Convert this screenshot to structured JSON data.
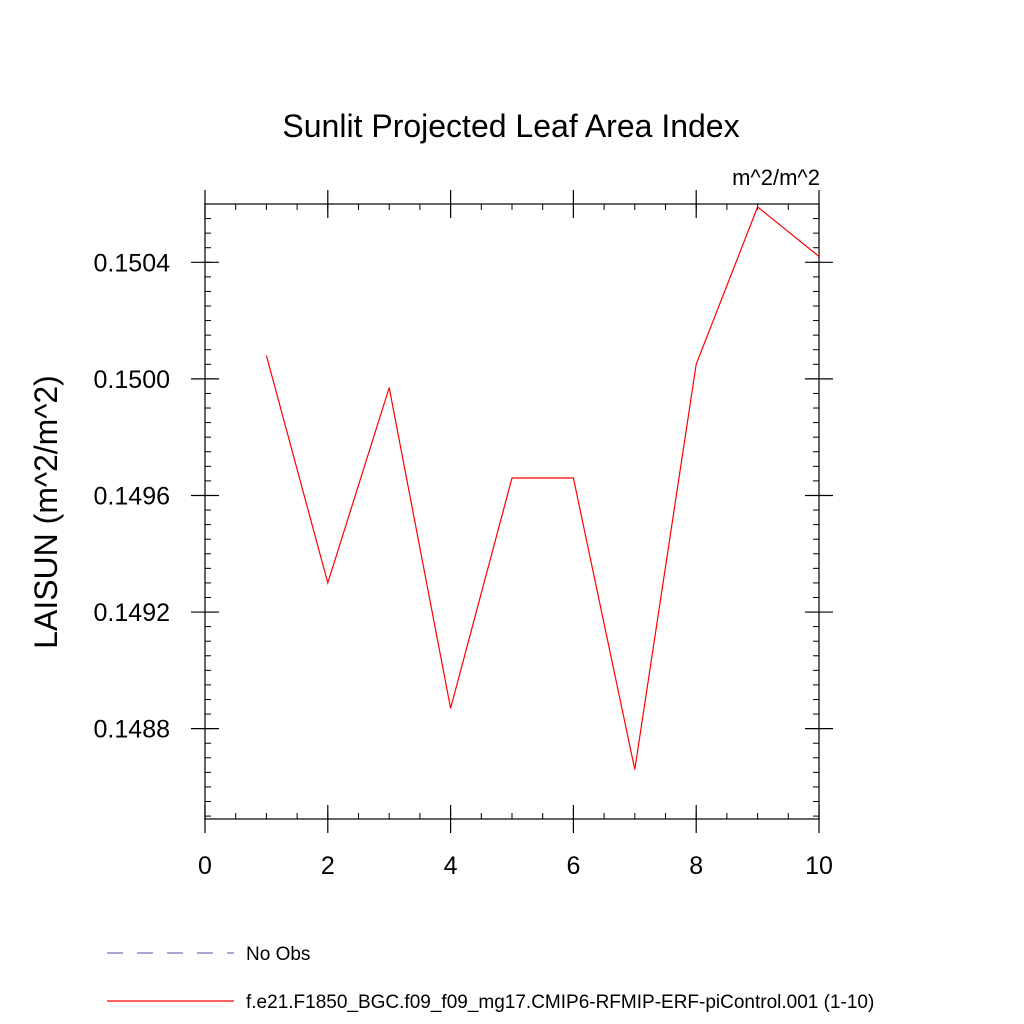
{
  "chart_data": {
    "type": "line",
    "title": "Sunlit Projected Leaf Area Index",
    "units_label": "m^2/m^2",
    "ylabel": "LAISUN  (m^2/m^2)",
    "xlabel": "",
    "xlim": [
      0,
      10
    ],
    "ylim": [
      0.14849,
      0.1506
    ],
    "x_ticks": [
      0,
      2,
      4,
      6,
      8,
      10
    ],
    "x_tick_labels": [
      "0",
      "2",
      "4",
      "6",
      "8",
      "10"
    ],
    "y_ticks": [
      0.1488,
      0.1492,
      0.1496,
      0.15,
      0.1504
    ],
    "y_tick_labels": [
      "0.1488",
      "0.1492",
      "0.1496",
      "0.1500",
      "0.1504"
    ],
    "x": [
      1,
      2,
      3,
      4,
      5,
      6,
      7,
      8,
      9,
      10
    ],
    "series": [
      {
        "name": "f.e21.F1850_BGC.f09_f09_mg17.CMIP6-RFMIP-ERF-piControl.001 (1-10)",
        "color": "#ff0000",
        "values": [
          0.15008,
          0.1493,
          0.14997,
          0.14887,
          0.14966,
          0.14966,
          0.14866,
          0.15005,
          0.15059,
          0.15042
        ]
      }
    ],
    "legend": [
      {
        "label": "No Obs",
        "color": "#7b6fb0",
        "style": "dashed"
      },
      {
        "label": "f.e21.F1850_BGC.f09_f09_mg17.CMIP6-RFMIP-ERF-piControl.001 (1-10)",
        "color": "#ff0000",
        "style": "solid"
      }
    ],
    "grid": false,
    "legend_position": "bottom-left"
  }
}
